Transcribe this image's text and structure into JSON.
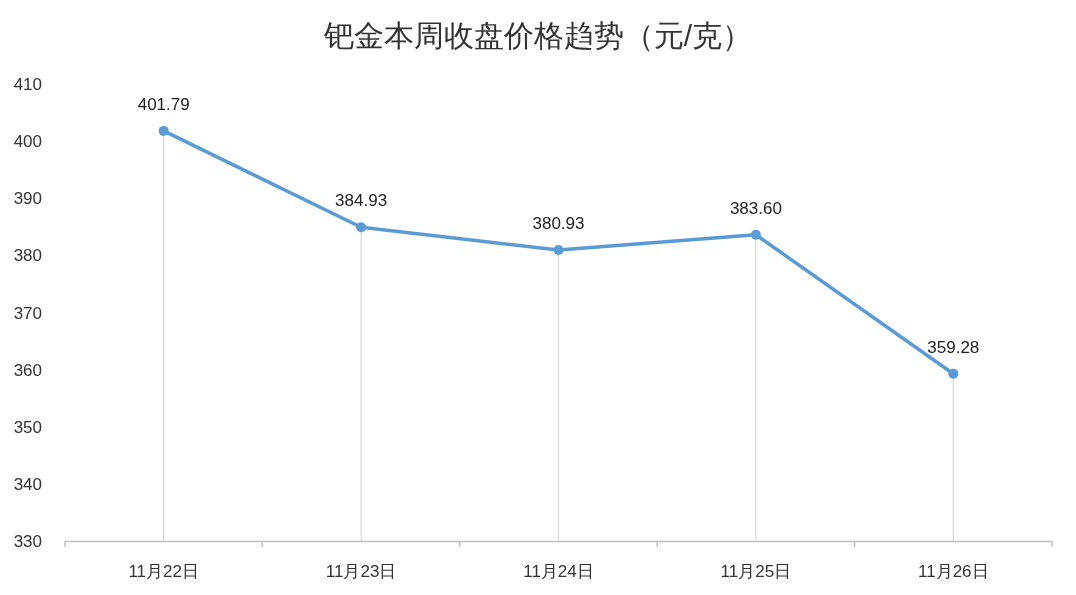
{
  "chart_data": {
    "type": "line",
    "title": "钯金本周收盘价格趋势（元/克）",
    "categories": [
      "11月22日",
      "11月23日",
      "11月24日",
      "11月25日",
      "11月26日"
    ],
    "series": [
      {
        "color": "#5b9bd5",
        "values": [
          401.79,
          384.93,
          380.93,
          383.6,
          359.28
        ],
        "value_labels": [
          "401.79",
          "384.93",
          "380.93",
          "383.60",
          "359.28"
        ]
      }
    ],
    "ylim": [
      330,
      410
    ],
    "yticks": [
      330,
      340,
      350,
      360,
      370,
      380,
      390,
      400,
      410
    ],
    "marker": "circle",
    "line_style": "solid",
    "grid": "x"
  }
}
